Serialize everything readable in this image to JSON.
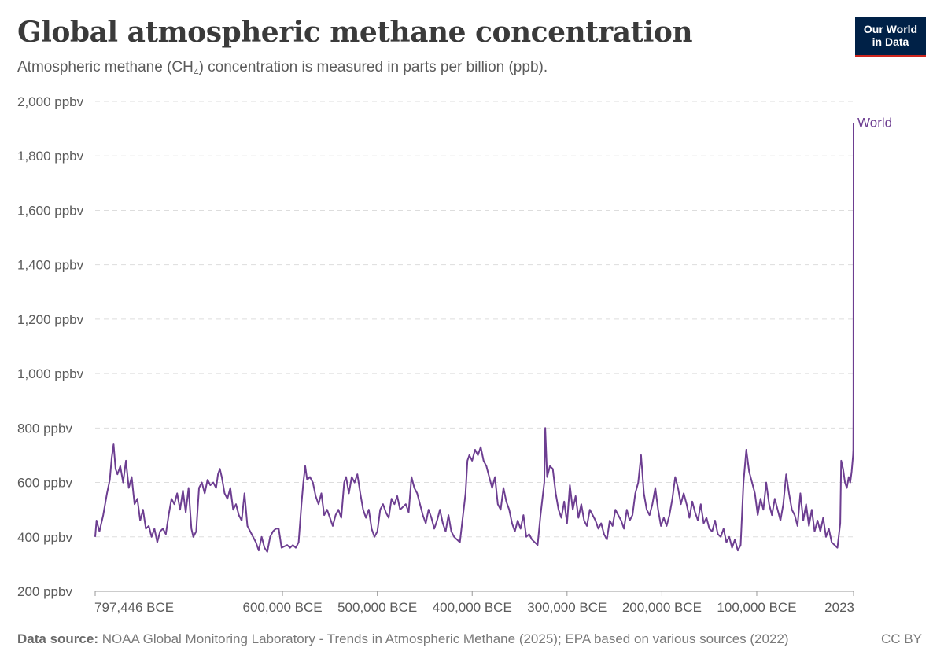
{
  "header": {
    "title": "Global atmospheric methane concentration",
    "subtitle_pre": "Atmospheric methane (CH",
    "subtitle_sub": "4",
    "subtitle_post": ") concentration is measured in parts per billion (ppb)."
  },
  "logo": {
    "line1": "Our World",
    "line2": "in Data",
    "bg": "#002147",
    "accent": "#ce261e"
  },
  "footer": {
    "source_label": "Data source:",
    "source_text": "NOAA Global Monitoring Laboratory - Trends in Atmospheric Methane (2025); EPA based on various sources (2022)",
    "license": "CC BY"
  },
  "chart_data": {
    "type": "line",
    "xlim": [
      -797446,
      2023
    ],
    "ylim": [
      200,
      2000
    ],
    "ylabel": "",
    "xlabel": "",
    "grid": "horizontal dashed",
    "y_ticks": [
      {
        "value": 200,
        "label": "200 ppbv"
      },
      {
        "value": 400,
        "label": "400 ppbv"
      },
      {
        "value": 600,
        "label": "600 ppbv"
      },
      {
        "value": 800,
        "label": "800 ppbv"
      },
      {
        "value": 1000,
        "label": "1,000 ppbv"
      },
      {
        "value": 1200,
        "label": "1,200 ppbv"
      },
      {
        "value": 1400,
        "label": "1,400 ppbv"
      },
      {
        "value": 1600,
        "label": "1,600 ppbv"
      },
      {
        "value": 1800,
        "label": "1,800 ppbv"
      },
      {
        "value": 2000,
        "label": "2,000 ppbv"
      }
    ],
    "x_ticks": [
      {
        "value": -797446,
        "label": "797,446 BCE"
      },
      {
        "value": -600000,
        "label": "600,000 BCE"
      },
      {
        "value": -500000,
        "label": "500,000 BCE"
      },
      {
        "value": -400000,
        "label": "400,000 BCE"
      },
      {
        "value": -300000,
        "label": "300,000 BCE"
      },
      {
        "value": -200000,
        "label": "200,000 BCE"
      },
      {
        "value": -100000,
        "label": "100,000 BCE"
      },
      {
        "value": 2023,
        "label": "2023"
      }
    ],
    "series": [
      {
        "name": "World",
        "color": "#6d3e91",
        "points": [
          [
            -797446,
            400
          ],
          [
            -796000,
            460
          ],
          [
            -793000,
            420
          ],
          [
            -789000,
            480
          ],
          [
            -785000,
            560
          ],
          [
            -782000,
            610
          ],
          [
            -780000,
            690
          ],
          [
            -778000,
            740
          ],
          [
            -776000,
            650
          ],
          [
            -774000,
            630
          ],
          [
            -771000,
            660
          ],
          [
            -768000,
            600
          ],
          [
            -765000,
            680
          ],
          [
            -762000,
            580
          ],
          [
            -759000,
            620
          ],
          [
            -756000,
            520
          ],
          [
            -753000,
            540
          ],
          [
            -750000,
            460
          ],
          [
            -747000,
            500
          ],
          [
            -744000,
            430
          ],
          [
            -741000,
            440
          ],
          [
            -738000,
            400
          ],
          [
            -735000,
            430
          ],
          [
            -732000,
            380
          ],
          [
            -729000,
            420
          ],
          [
            -726000,
            430
          ],
          [
            -723000,
            410
          ],
          [
            -720000,
            480
          ],
          [
            -717000,
            540
          ],
          [
            -714000,
            520
          ],
          [
            -711000,
            560
          ],
          [
            -708000,
            500
          ],
          [
            -705000,
            570
          ],
          [
            -702000,
            490
          ],
          [
            -699000,
            580
          ],
          [
            -696000,
            430
          ],
          [
            -694000,
            400
          ],
          [
            -691000,
            420
          ],
          [
            -688000,
            580
          ],
          [
            -685000,
            600
          ],
          [
            -682000,
            560
          ],
          [
            -679000,
            610
          ],
          [
            -676000,
            590
          ],
          [
            -673000,
            600
          ],
          [
            -670000,
            580
          ],
          [
            -668000,
            630
          ],
          [
            -666000,
            650
          ],
          [
            -664000,
            620
          ],
          [
            -661000,
            560
          ],
          [
            -658000,
            540
          ],
          [
            -655000,
            580
          ],
          [
            -652000,
            500
          ],
          [
            -649000,
            520
          ],
          [
            -646000,
            480
          ],
          [
            -643000,
            460
          ],
          [
            -640000,
            560
          ],
          [
            -637000,
            440
          ],
          [
            -634000,
            420
          ],
          [
            -631000,
            400
          ],
          [
            -628000,
            380
          ],
          [
            -625000,
            350
          ],
          [
            -622000,
            400
          ],
          [
            -619000,
            360
          ],
          [
            -616000,
            345
          ],
          [
            -613000,
            400
          ],
          [
            -610000,
            420
          ],
          [
            -607000,
            430
          ],
          [
            -604000,
            430
          ],
          [
            -601000,
            360
          ],
          [
            -598000,
            365
          ],
          [
            -595000,
            370
          ],
          [
            -592000,
            360
          ],
          [
            -589000,
            370
          ],
          [
            -586000,
            360
          ],
          [
            -583000,
            380
          ],
          [
            -580000,
            520
          ],
          [
            -578000,
            600
          ],
          [
            -576000,
            660
          ],
          [
            -574000,
            610
          ],
          [
            -571000,
            620
          ],
          [
            -568000,
            600
          ],
          [
            -565000,
            550
          ],
          [
            -562000,
            520
          ],
          [
            -559000,
            560
          ],
          [
            -556000,
            480
          ],
          [
            -553000,
            500
          ],
          [
            -550000,
            470
          ],
          [
            -547000,
            440
          ],
          [
            -544000,
            480
          ],
          [
            -541000,
            500
          ],
          [
            -538000,
            470
          ],
          [
            -535000,
            600
          ],
          [
            -533000,
            620
          ],
          [
            -530000,
            560
          ],
          [
            -527000,
            620
          ],
          [
            -524000,
            600
          ],
          [
            -521000,
            630
          ],
          [
            -518000,
            560
          ],
          [
            -515000,
            500
          ],
          [
            -512000,
            470
          ],
          [
            -509000,
            500
          ],
          [
            -506000,
            430
          ],
          [
            -503000,
            400
          ],
          [
            -500000,
            420
          ],
          [
            -497000,
            500
          ],
          [
            -494000,
            520
          ],
          [
            -491000,
            490
          ],
          [
            -488000,
            470
          ],
          [
            -485000,
            540
          ],
          [
            -482000,
            520
          ],
          [
            -479000,
            550
          ],
          [
            -476000,
            500
          ],
          [
            -473000,
            510
          ],
          [
            -470000,
            520
          ],
          [
            -467000,
            490
          ],
          [
            -464000,
            620
          ],
          [
            -461000,
            580
          ],
          [
            -458000,
            560
          ],
          [
            -455000,
            520
          ],
          [
            -452000,
            480
          ],
          [
            -449000,
            450
          ],
          [
            -446000,
            500
          ],
          [
            -443000,
            470
          ],
          [
            -440000,
            430
          ],
          [
            -437000,
            460
          ],
          [
            -434000,
            500
          ],
          [
            -431000,
            450
          ],
          [
            -428000,
            420
          ],
          [
            -425000,
            480
          ],
          [
            -422000,
            420
          ],
          [
            -419000,
            400
          ],
          [
            -416000,
            390
          ],
          [
            -413000,
            380
          ],
          [
            -410000,
            470
          ],
          [
            -407000,
            560
          ],
          [
            -405000,
            680
          ],
          [
            -403000,
            700
          ],
          [
            -400000,
            680
          ],
          [
            -397000,
            720
          ],
          [
            -394000,
            700
          ],
          [
            -391000,
            730
          ],
          [
            -388000,
            680
          ],
          [
            -385000,
            660
          ],
          [
            -382000,
            620
          ],
          [
            -379000,
            580
          ],
          [
            -376000,
            620
          ],
          [
            -373000,
            520
          ],
          [
            -370000,
            500
          ],
          [
            -367000,
            580
          ],
          [
            -364000,
            530
          ],
          [
            -361000,
            500
          ],
          [
            -358000,
            450
          ],
          [
            -355000,
            420
          ],
          [
            -352000,
            460
          ],
          [
            -349000,
            430
          ],
          [
            -346000,
            480
          ],
          [
            -343000,
            400
          ],
          [
            -340000,
            410
          ],
          [
            -337000,
            390
          ],
          [
            -334000,
            380
          ],
          [
            -331000,
            370
          ],
          [
            -328000,
            480
          ],
          [
            -326000,
            540
          ],
          [
            -324000,
            600
          ],
          [
            -323000,
            800
          ],
          [
            -321000,
            620
          ],
          [
            -318000,
            660
          ],
          [
            -315000,
            650
          ],
          [
            -312000,
            560
          ],
          [
            -309000,
            500
          ],
          [
            -306000,
            470
          ],
          [
            -303000,
            530
          ],
          [
            -300000,
            450
          ],
          [
            -297000,
            590
          ],
          [
            -294000,
            500
          ],
          [
            -291000,
            550
          ],
          [
            -288000,
            470
          ],
          [
            -285000,
            520
          ],
          [
            -282000,
            460
          ],
          [
            -279000,
            440
          ],
          [
            -276000,
            500
          ],
          [
            -273000,
            480
          ],
          [
            -270000,
            460
          ],
          [
            -267000,
            430
          ],
          [
            -264000,
            450
          ],
          [
            -261000,
            410
          ],
          [
            -258000,
            390
          ],
          [
            -255000,
            460
          ],
          [
            -252000,
            440
          ],
          [
            -249000,
            500
          ],
          [
            -246000,
            480
          ],
          [
            -243000,
            460
          ],
          [
            -240000,
            430
          ],
          [
            -237000,
            500
          ],
          [
            -234000,
            460
          ],
          [
            -231000,
            480
          ],
          [
            -228000,
            560
          ],
          [
            -225000,
            600
          ],
          [
            -222000,
            700
          ],
          [
            -219000,
            560
          ],
          [
            -216000,
            500
          ],
          [
            -213000,
            480
          ],
          [
            -210000,
            520
          ],
          [
            -207000,
            580
          ],
          [
            -204000,
            500
          ],
          [
            -201000,
            440
          ],
          [
            -198000,
            470
          ],
          [
            -195000,
            440
          ],
          [
            -192000,
            480
          ],
          [
            -189000,
            540
          ],
          [
            -186000,
            620
          ],
          [
            -183000,
            580
          ],
          [
            -180000,
            520
          ],
          [
            -177000,
            560
          ],
          [
            -174000,
            520
          ],
          [
            -171000,
            470
          ],
          [
            -168000,
            530
          ],
          [
            -165000,
            490
          ],
          [
            -162000,
            460
          ],
          [
            -159000,
            520
          ],
          [
            -156000,
            450
          ],
          [
            -153000,
            470
          ],
          [
            -150000,
            430
          ],
          [
            -147000,
            420
          ],
          [
            -144000,
            460
          ],
          [
            -141000,
            410
          ],
          [
            -138000,
            400
          ],
          [
            -135000,
            430
          ],
          [
            -132000,
            380
          ],
          [
            -129000,
            400
          ],
          [
            -126000,
            360
          ],
          [
            -123000,
            390
          ],
          [
            -120000,
            350
          ],
          [
            -117000,
            370
          ],
          [
            -114000,
            600
          ],
          [
            -111000,
            720
          ],
          [
            -108000,
            640
          ],
          [
            -105000,
            600
          ],
          [
            -102000,
            560
          ],
          [
            -99000,
            480
          ],
          [
            -96000,
            540
          ],
          [
            -93000,
            500
          ],
          [
            -90000,
            600
          ],
          [
            -87000,
            520
          ],
          [
            -84000,
            480
          ],
          [
            -81000,
            540
          ],
          [
            -78000,
            500
          ],
          [
            -75000,
            460
          ],
          [
            -72000,
            520
          ],
          [
            -69000,
            630
          ],
          [
            -66000,
            560
          ],
          [
            -63000,
            500
          ],
          [
            -60000,
            480
          ],
          [
            -57000,
            440
          ],
          [
            -54000,
            560
          ],
          [
            -51000,
            460
          ],
          [
            -48000,
            520
          ],
          [
            -45000,
            440
          ],
          [
            -42000,
            500
          ],
          [
            -39000,
            420
          ],
          [
            -36000,
            460
          ],
          [
            -33000,
            420
          ],
          [
            -30000,
            470
          ],
          [
            -27000,
            400
          ],
          [
            -24000,
            430
          ],
          [
            -21000,
            380
          ],
          [
            -18000,
            370
          ],
          [
            -15000,
            360
          ],
          [
            -12000,
            450
          ],
          [
            -11000,
            680
          ],
          [
            -9000,
            650
          ],
          [
            -7000,
            600
          ],
          [
            -5000,
            580
          ],
          [
            -3000,
            620
          ],
          [
            -1500,
            600
          ],
          [
            0,
            640
          ],
          [
            1000,
            680
          ],
          [
            1500,
            700
          ],
          [
            1800,
            720
          ],
          [
            1900,
            900
          ],
          [
            1950,
            1150
          ],
          [
            1984,
            1650
          ],
          [
            2000,
            1770
          ],
          [
            2010,
            1800
          ],
          [
            2023,
            1920
          ]
        ]
      }
    ]
  }
}
